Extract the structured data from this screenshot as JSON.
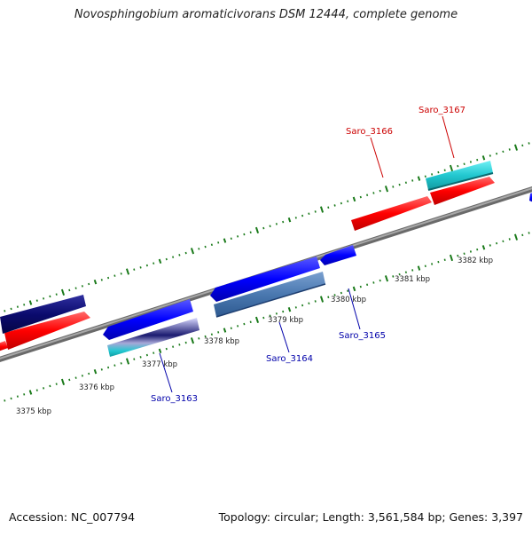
{
  "title": "Novosphingobium aromaticivorans DSM 12444, complete genome",
  "footer": {
    "accession": "Accession: NC_007794",
    "summary": "Topology: circular; Length: 3,561,584 bp; Genes: 3,397"
  },
  "ticks": [
    "3375 kbp",
    "3376 kbp",
    "3377 kbp",
    "3378 kbp",
    "3379 kbp",
    "3380 kbp",
    "3381 kbp",
    "3382 kbp"
  ],
  "gene_labels": [
    {
      "id": "saro_3163",
      "text": "Saro_3163",
      "strand": "reverse"
    },
    {
      "id": "saro_3164",
      "text": "Saro_3164",
      "strand": "reverse"
    },
    {
      "id": "saro_3165",
      "text": "Saro_3165",
      "strand": "reverse"
    },
    {
      "id": "saro_3166",
      "text": "Saro_3166",
      "strand": "forward"
    },
    {
      "id": "saro_3167",
      "text": "Saro_3167",
      "strand": "forward"
    }
  ],
  "colors": {
    "forward_label": "#cc0000",
    "reverse_label": "#0000aa",
    "forward_cds": "#ff0000",
    "reverse_cds": "#0000ff",
    "dark_cds": "#0b0b6e",
    "steel_cds": "#4a78b0",
    "cyan_feature": "#22c8d0",
    "backbone": "#888888",
    "tick_marks": "#1a7a1a"
  }
}
